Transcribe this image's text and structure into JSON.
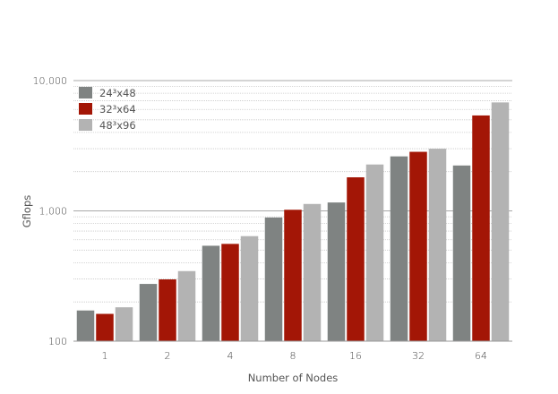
{
  "chart_data": {
    "type": "bar",
    "title": "",
    "xlabel": "Number of Nodes",
    "ylabel": "Gflops",
    "yscale": "log",
    "ylim": [
      100,
      10000
    ],
    "yticks": [
      100,
      1000,
      10000
    ],
    "ytick_labels": [
      "100",
      "1,000",
      "10,000"
    ],
    "grid": "horizontal, major and minor",
    "legend_position": "top-left",
    "categories": [
      "1",
      "2",
      "4",
      "8",
      "16",
      "32",
      "64"
    ],
    "series": [
      {
        "name": "24³x48",
        "color": "#7f8382",
        "values": [
          172,
          275,
          540,
          890,
          1160,
          2620,
          2230
        ]
      },
      {
        "name": "32³x64",
        "color": "#a31606",
        "values": [
          162,
          298,
          558,
          1020,
          1810,
          2840,
          5400
        ]
      },
      {
        "name": "48³x96",
        "color": "#b3b3b3",
        "values": [
          182,
          345,
          640,
          1130,
          2270,
          3000,
          6800
        ]
      }
    ]
  }
}
